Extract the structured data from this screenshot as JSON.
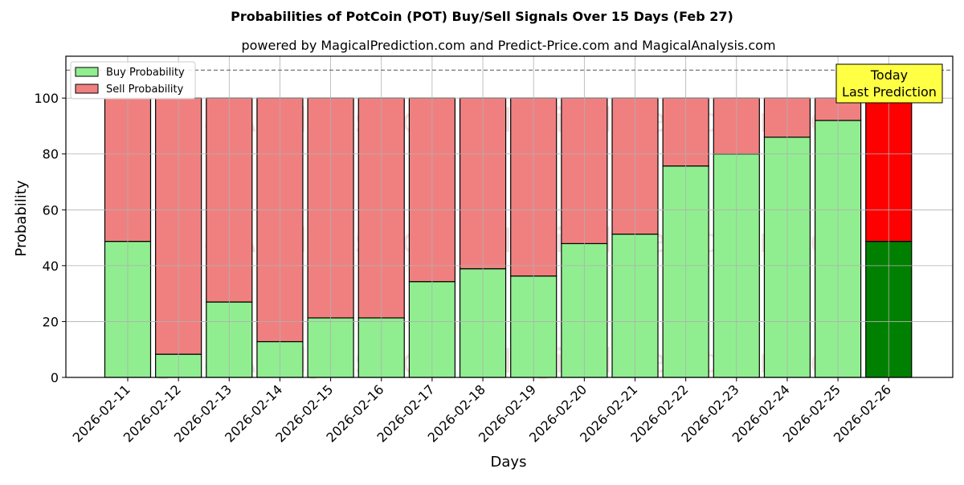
{
  "chart_data": {
    "type": "bar",
    "stacked": true,
    "title": "Probabilities of PotCoin (POT) Buy/Sell Signals Over 15 Days (Feb 27)",
    "subtitle": "powered by MagicalPrediction.com and Predict-Price.com and MagicalAnalysis.com",
    "xlabel": "Days",
    "ylabel": "Probability",
    "ylim": [
      0,
      115
    ],
    "yticks": [
      0,
      20,
      40,
      60,
      80,
      100
    ],
    "grid": true,
    "reference_line": 110,
    "legend_position": "top-left",
    "categories": [
      "2026-02-11",
      "2026-02-12",
      "2026-02-13",
      "2026-02-14",
      "2026-02-15",
      "2026-02-16",
      "2026-02-17",
      "2026-02-18",
      "2026-02-19",
      "2026-02-20",
      "2026-02-21",
      "2026-02-22",
      "2026-02-23",
      "2026-02-24",
      "2026-02-25",
      "2026-02-26"
    ],
    "series": [
      {
        "name": "Buy Probability",
        "color": "#90ee90",
        "values": [
          48.7,
          8.3,
          27.0,
          12.8,
          21.3,
          21.3,
          34.3,
          38.9,
          36.3,
          47.9,
          51.3,
          75.7,
          80.0,
          86.0,
          92.0,
          48.7
        ]
      },
      {
        "name": "Sell Probability",
        "color": "#f08080",
        "values": [
          51.3,
          91.7,
          73.0,
          87.2,
          78.7,
          78.7,
          65.7,
          61.1,
          63.7,
          52.1,
          48.7,
          24.3,
          20.0,
          14.0,
          8.0,
          51.3
        ]
      }
    ],
    "highlight": {
      "index": 15,
      "buy_color": "#008000",
      "sell_color": "#ff0000",
      "label_line1": "Today",
      "label_line2": "Last Prediction",
      "box_color": "#ffff44"
    },
    "watermarks": [
      "MagicalAnalysis.com",
      "MagicalPrediction.com"
    ]
  }
}
